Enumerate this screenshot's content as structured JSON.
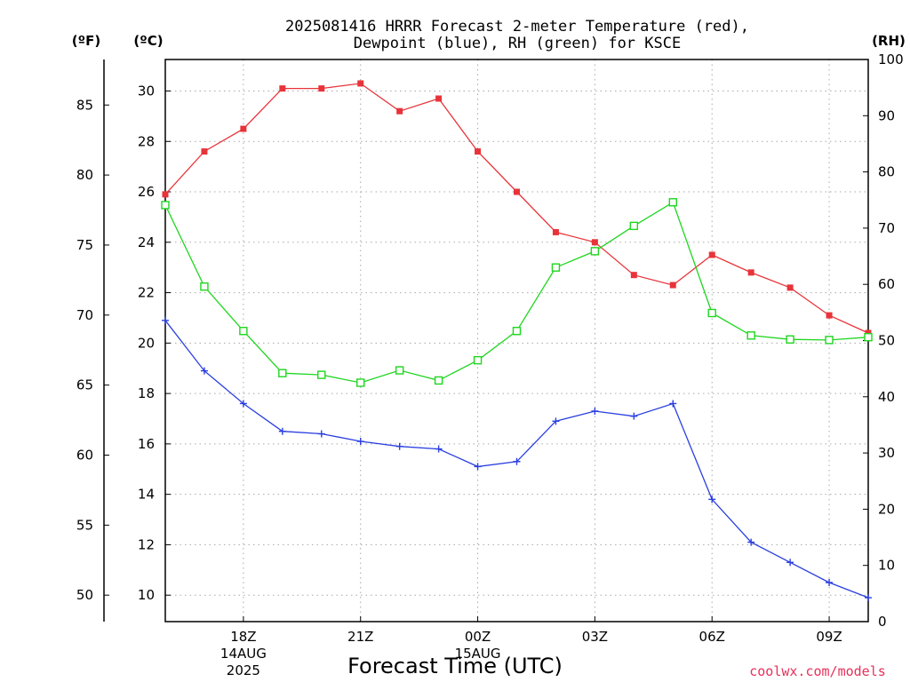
{
  "title_lines": [
    "2025081416 HRRR Forecast 2-meter Temperature (red),",
    "Dewpoint (blue), RH (green) for KSCE"
  ],
  "units": {
    "fahrenheit": "(ºF)",
    "celsius": "(ºC)",
    "rh": "(RH)"
  },
  "xlabel": "Forecast Time (UTC)",
  "credit": "coolwx.com/models",
  "colors": {
    "temperature": "#e8333a",
    "dewpoint": "#2a3fe0",
    "rh": "#1fd61f",
    "credit": "#e8305a"
  },
  "chart_data": {
    "type": "line",
    "x_hours": [
      16,
      17,
      18,
      19,
      20,
      21,
      22,
      23,
      24,
      25,
      26,
      27,
      28,
      29,
      30,
      31,
      32,
      33,
      34
    ],
    "xlim": [
      16,
      34
    ],
    "x_ticks": [
      {
        "hour": 18,
        "label": "18Z"
      },
      {
        "hour": 21,
        "label": "21Z"
      },
      {
        "hour": 24,
        "label": "00Z"
      },
      {
        "hour": 27,
        "label": "03Z"
      },
      {
        "hour": 30,
        "label": "06Z"
      },
      {
        "hour": 33,
        "label": "09Z"
      }
    ],
    "date_labels": [
      {
        "hour": 18,
        "lines": [
          "14AUG",
          "2025"
        ]
      },
      {
        "hour": 24,
        "lines": [
          "15AUG"
        ]
      }
    ],
    "y_celsius": {
      "lim": [
        8.95,
        31.25
      ],
      "ticks": [
        10,
        12,
        14,
        16,
        18,
        20,
        22,
        24,
        26,
        28,
        30
      ]
    },
    "y_fahrenheit": {
      "lim": [
        48.11,
        88.25
      ],
      "ticks": [
        50,
        55,
        60,
        65,
        70,
        75,
        80,
        85
      ]
    },
    "y_rh": {
      "lim": [
        0,
        100
      ],
      "ticks": [
        0,
        10,
        20,
        30,
        40,
        50,
        60,
        70,
        80,
        90,
        100
      ]
    },
    "grid": true,
    "series": [
      {
        "key": "temperature",
        "axis": "celsius",
        "marker": "filled-square",
        "values": [
          25.9,
          27.6,
          28.5,
          30.1,
          30.1,
          30.3,
          29.2,
          29.7,
          27.6,
          26.0,
          24.4,
          24.0,
          22.7,
          22.3,
          23.5,
          22.8,
          22.2,
          21.1,
          20.4
        ]
      },
      {
        "key": "dewpoint",
        "axis": "celsius",
        "marker": "plus",
        "values": [
          20.9,
          18.9,
          17.6,
          16.5,
          16.4,
          16.1,
          15.9,
          15.8,
          15.1,
          15.3,
          16.9,
          17.3,
          17.1,
          17.6,
          13.8,
          12.1,
          11.3,
          10.5,
          9.9
        ]
      },
      {
        "key": "rh",
        "axis": "rh",
        "marker": "open-square",
        "values": [
          74.1,
          59.6,
          51.7,
          44.2,
          43.9,
          42.5,
          44.7,
          42.9,
          46.5,
          51.7,
          63.0,
          65.9,
          70.4,
          74.6,
          54.9,
          50.9,
          50.2,
          50.1,
          50.6
        ]
      }
    ]
  }
}
